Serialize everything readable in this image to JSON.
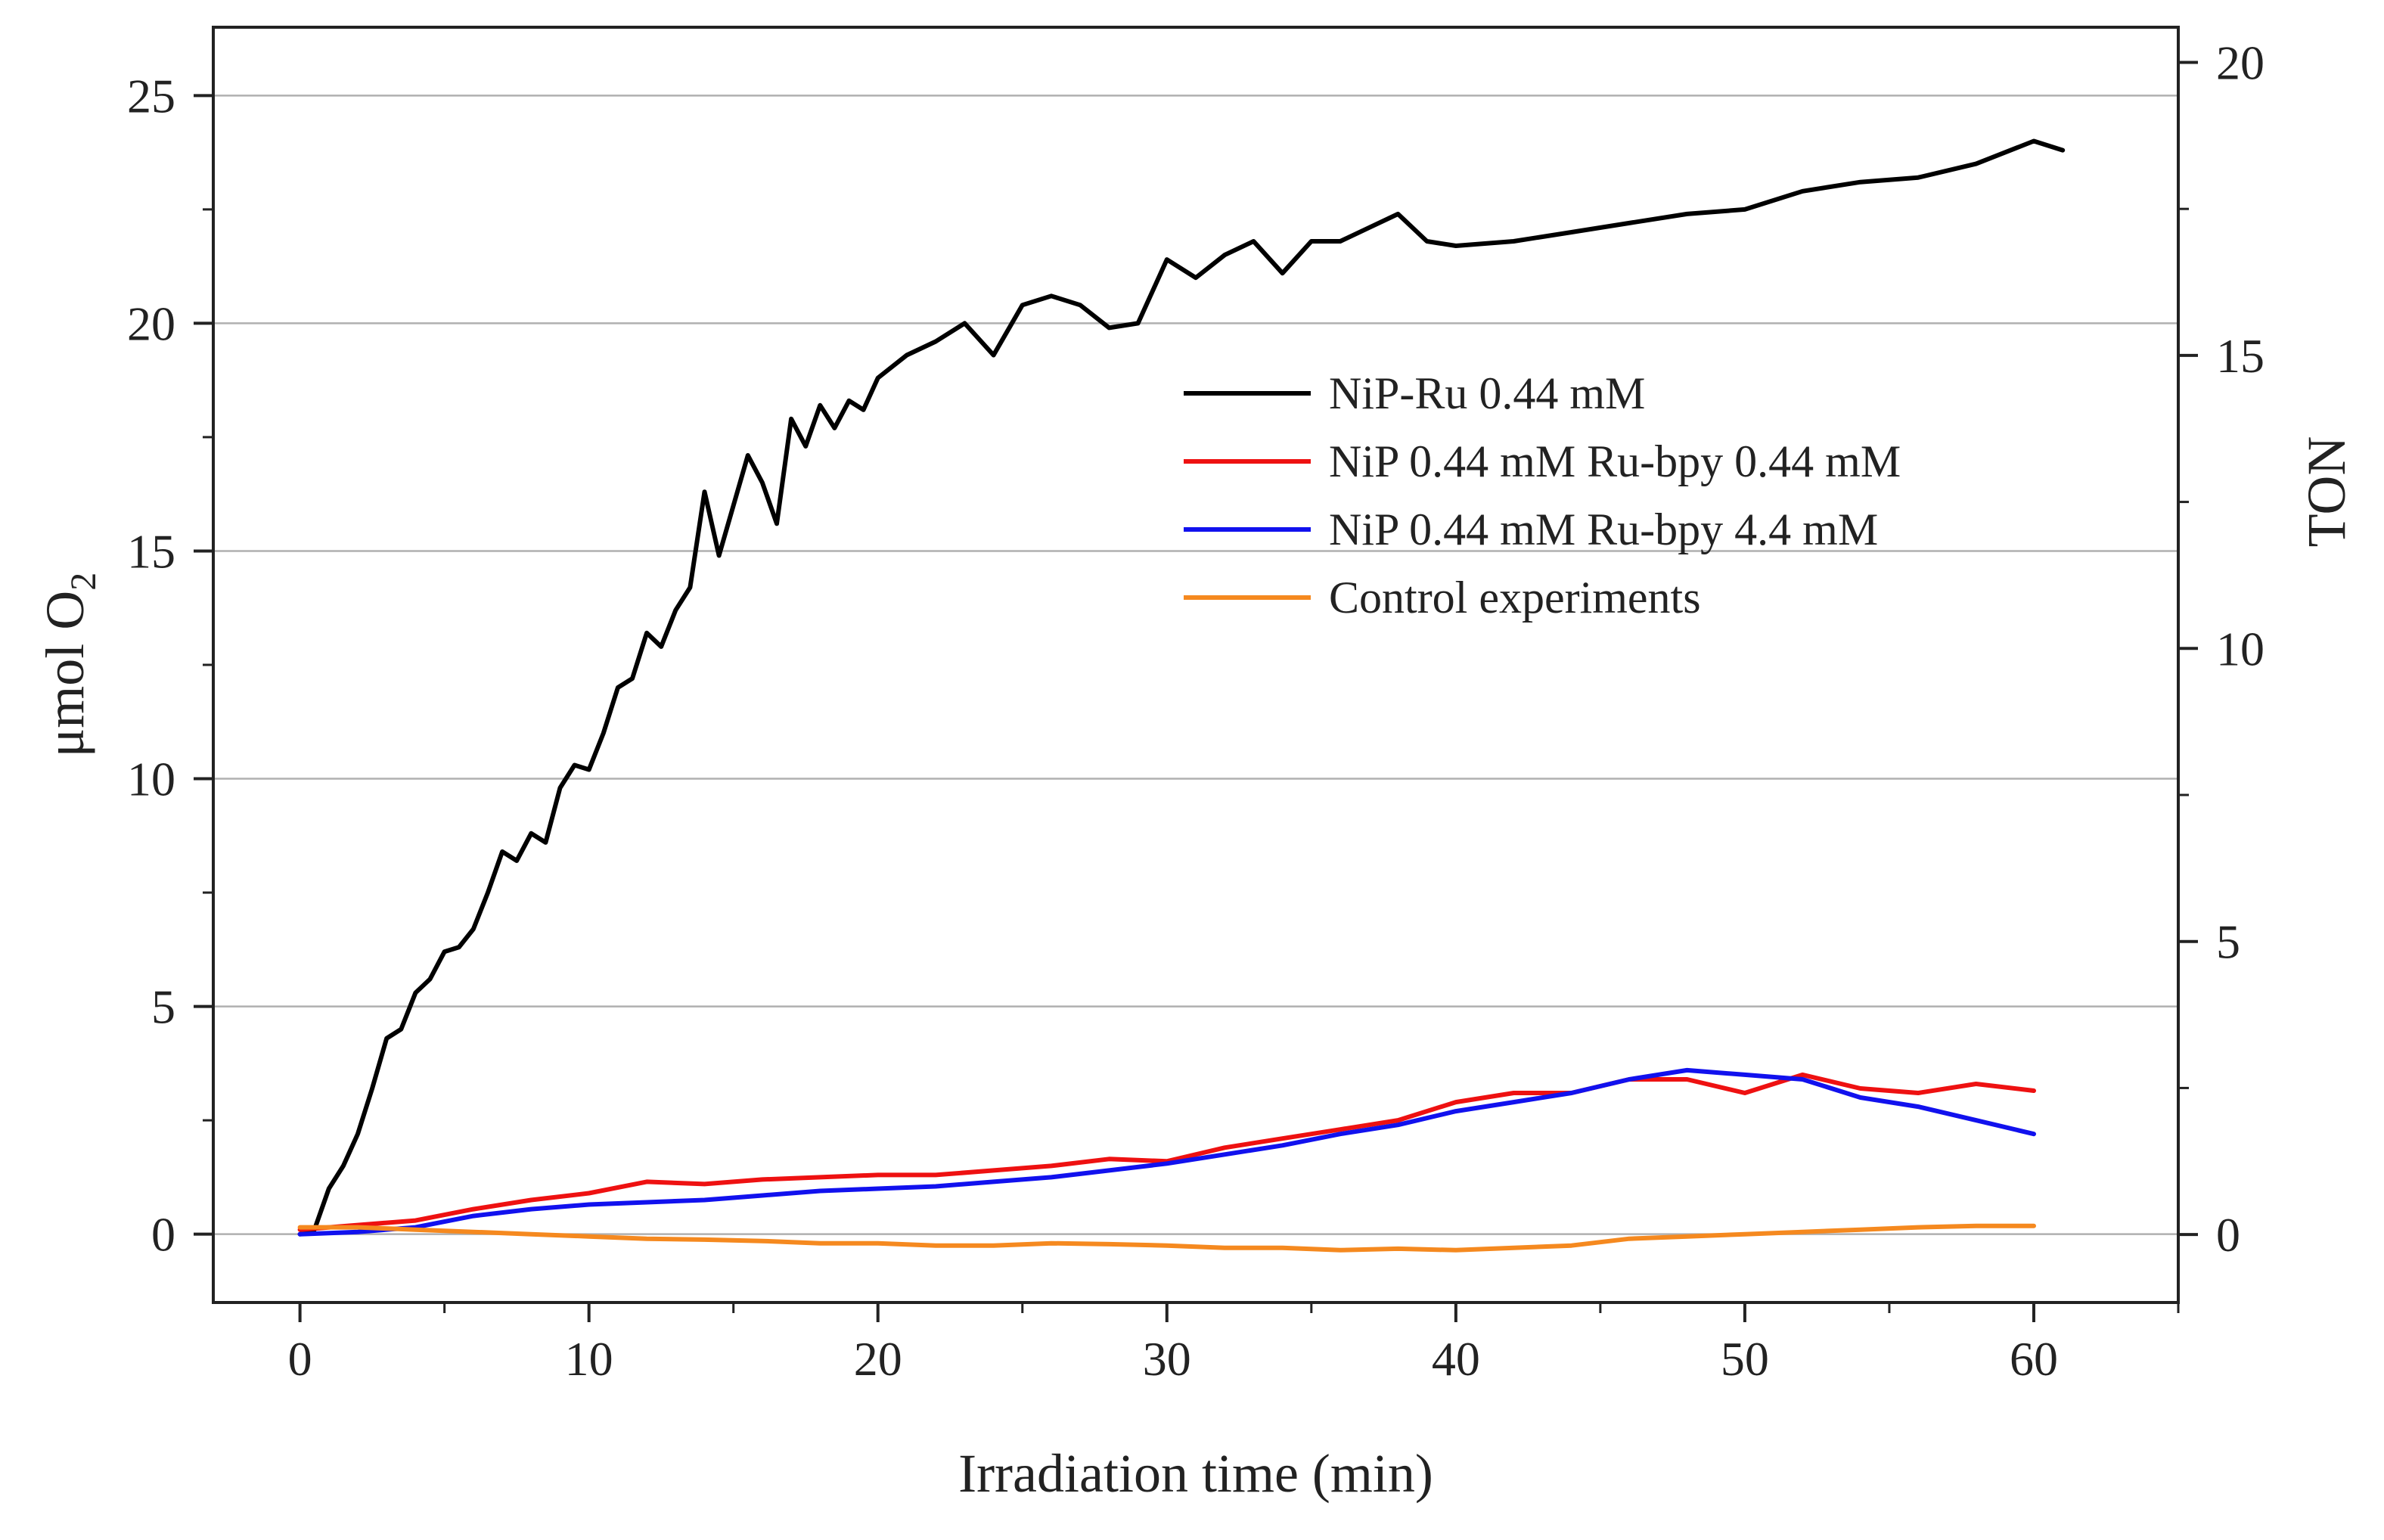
{
  "chart_data": {
    "type": "line",
    "title": "",
    "xlabel": "Irradiation time (min)",
    "ylabel": "μmol O",
    "ylabel_subscript": "2",
    "y2label": "TON",
    "xlim": [
      -3,
      65
    ],
    "ylim": [
      -1.5,
      26.5
    ],
    "y2lim": [
      -1.16,
      20.6
    ],
    "xticks": [
      0,
      10,
      20,
      30,
      40,
      50,
      60
    ],
    "yticks": [
      0,
      5,
      10,
      15,
      20,
      25
    ],
    "y2ticks": [
      0,
      5,
      10,
      15,
      20
    ],
    "x_tick_labels": [
      "0",
      "10",
      "20",
      "30",
      "40",
      "50",
      "60"
    ],
    "y_tick_labels": [
      "0",
      "5",
      "10",
      "15",
      "20",
      "25"
    ],
    "y2_tick_labels": [
      "0",
      "5",
      "10",
      "15",
      "20"
    ],
    "grid": "horizontal",
    "legend_position": "center-right",
    "series": [
      {
        "name": "NiP-Ru 0.44 mM",
        "color": "#000000",
        "x": [
          0,
          0.5,
          1,
          1.5,
          2,
          2.5,
          3,
          3.5,
          4,
          4.5,
          5,
          5.5,
          6,
          6.5,
          7,
          7.5,
          8,
          8.5,
          9,
          9.5,
          10,
          10.5,
          11,
          11.5,
          12,
          12.5,
          13,
          13.5,
          14,
          14.5,
          15,
          15.5,
          16,
          16.5,
          17,
          17.5,
          18,
          18.5,
          19,
          19.5,
          20,
          21,
          22,
          23,
          24,
          25,
          26,
          27,
          28,
          29,
          30,
          31,
          32,
          33,
          34,
          35,
          36,
          37,
          38,
          39,
          40,
          42,
          44,
          46,
          48,
          50,
          52,
          54,
          56,
          58,
          60,
          61
        ],
        "values": [
          0,
          0.1,
          1,
          1.5,
          2.2,
          3.2,
          4.3,
          4.5,
          5.3,
          5.6,
          6.2,
          6.3,
          6.7,
          7.5,
          8.4,
          8.2,
          8.8,
          8.6,
          9.8,
          10.3,
          10.2,
          11,
          12,
          12.2,
          13.2,
          12.9,
          13.7,
          14.2,
          16.3,
          14.9,
          16,
          17.1,
          16.5,
          15.6,
          17.9,
          17.3,
          18.2,
          17.7,
          18.3,
          18.1,
          18.8,
          19.3,
          19.6,
          20,
          19.3,
          20.4,
          20.6,
          20.4,
          19.9,
          20,
          21.4,
          21,
          21.5,
          21.8,
          21.1,
          21.8,
          21.8,
          22.1,
          22.4,
          21.8,
          21.7,
          21.8,
          22,
          22.2,
          22.4,
          22.5,
          22.9,
          23.1,
          23.2,
          23.5,
          24,
          23.8
        ]
      },
      {
        "name": "NiP 0.44 mM Ru-bpy 0.44 mM",
        "color": "#ee1111",
        "x": [
          0,
          2,
          4,
          6,
          8,
          10,
          12,
          14,
          16,
          18,
          20,
          22,
          24,
          26,
          28,
          30,
          32,
          34,
          36,
          38,
          40,
          42,
          44,
          46,
          48,
          50,
          52,
          54,
          56,
          58,
          60
        ],
        "values": [
          0.1,
          0.2,
          0.3,
          0.55,
          0.75,
          0.9,
          1.15,
          1.1,
          1.2,
          1.25,
          1.3,
          1.3,
          1.4,
          1.5,
          1.65,
          1.6,
          1.9,
          2.1,
          2.3,
          2.5,
          2.9,
          3.1,
          3.1,
          3.4,
          3.4,
          3.1,
          3.5,
          3.2,
          3.1,
          3.3,
          3.15
        ]
      },
      {
        "name": "NiP 0.44 mM Ru-bpy 4.4 mM",
        "color": "#1111ee",
        "x": [
          0,
          2,
          4,
          6,
          8,
          10,
          12,
          14,
          16,
          18,
          20,
          22,
          24,
          26,
          28,
          30,
          32,
          34,
          36,
          38,
          40,
          42,
          44,
          46,
          48,
          50,
          52,
          54,
          56,
          58,
          60
        ],
        "values": [
          0,
          0.05,
          0.15,
          0.4,
          0.55,
          0.65,
          0.7,
          0.75,
          0.85,
          0.95,
          1.0,
          1.05,
          1.15,
          1.25,
          1.4,
          1.55,
          1.75,
          1.95,
          2.2,
          2.4,
          2.7,
          2.9,
          3.1,
          3.4,
          3.6,
          3.5,
          3.4,
          3.0,
          2.8,
          2.5,
          2.2
        ]
      },
      {
        "name": "Control experiments",
        "color": "#f5891f",
        "x": [
          0,
          2,
          4,
          6,
          8,
          10,
          12,
          14,
          16,
          18,
          20,
          22,
          24,
          26,
          28,
          30,
          32,
          34,
          36,
          38,
          40,
          42,
          44,
          46,
          48,
          50,
          52,
          54,
          56,
          58,
          60
        ],
        "values": [
          0.15,
          0.15,
          0.1,
          0.05,
          0,
          -0.05,
          -0.1,
          -0.12,
          -0.15,
          -0.2,
          -0.2,
          -0.25,
          -0.25,
          -0.2,
          -0.22,
          -0.25,
          -0.3,
          -0.3,
          -0.35,
          -0.32,
          -0.35,
          -0.3,
          -0.25,
          -0.1,
          -0.05,
          0,
          0.05,
          0.1,
          0.15,
          0.18,
          0.18
        ]
      }
    ]
  }
}
